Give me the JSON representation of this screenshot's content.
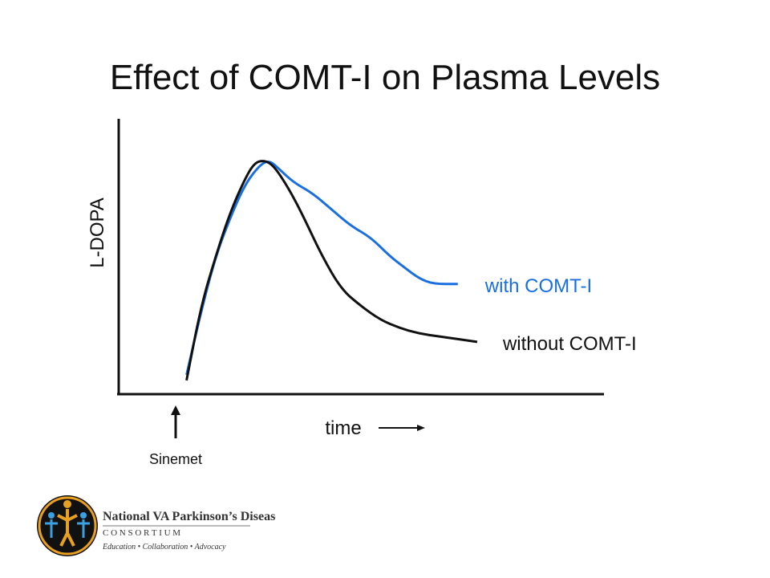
{
  "slide": {
    "title": "Effect of COMT-I on Plasma Levels",
    "colors": {
      "with": "#1a6fe0",
      "without": "#111111",
      "axis": "#111111"
    }
  },
  "chart_data": {
    "type": "line",
    "title": "Effect of COMT-I on Plasma Levels",
    "xlabel": "time",
    "ylabel": "L-DOPA",
    "ticks": "none",
    "grid": false,
    "xlim": [
      0,
      10
    ],
    "ylim": [
      0,
      10
    ],
    "annotations": {
      "dose_marker": "Sinemet",
      "dose_x": 1.4
    },
    "series": [
      {
        "name": "with COMT-I",
        "color": "#1a6fe0",
        "x": [
          1.4,
          1.7,
          2.0,
          2.3,
          2.6,
          2.9,
          3.1,
          3.3,
          3.6,
          4.0,
          4.4,
          4.8,
          5.2,
          5.6,
          5.9,
          6.2,
          6.5,
          7.0
        ],
        "y": [
          0.7,
          3.0,
          5.0,
          6.4,
          7.6,
          8.3,
          8.5,
          8.2,
          7.7,
          7.3,
          6.7,
          6.1,
          5.7,
          5.0,
          4.6,
          4.2,
          4.0,
          4.0
        ]
      },
      {
        "name": "without COMT-I",
        "color": "#111111",
        "x": [
          1.4,
          1.7,
          2.0,
          2.3,
          2.6,
          2.8,
          3.0,
          3.2,
          3.5,
          3.8,
          4.2,
          4.6,
          5.0,
          5.4,
          5.8,
          6.2,
          6.6,
          7.4
        ],
        "y": [
          0.5,
          3.2,
          5.0,
          6.6,
          7.8,
          8.4,
          8.5,
          8.3,
          7.5,
          6.5,
          5.0,
          3.8,
          3.2,
          2.7,
          2.4,
          2.2,
          2.1,
          1.9
        ]
      }
    ]
  },
  "logo": {
    "line1": "National VA Parkinson’s Disease",
    "line2": "C O N S O R T I U M",
    "line3": "Education  •  Collaboration  •  Advocacy"
  }
}
